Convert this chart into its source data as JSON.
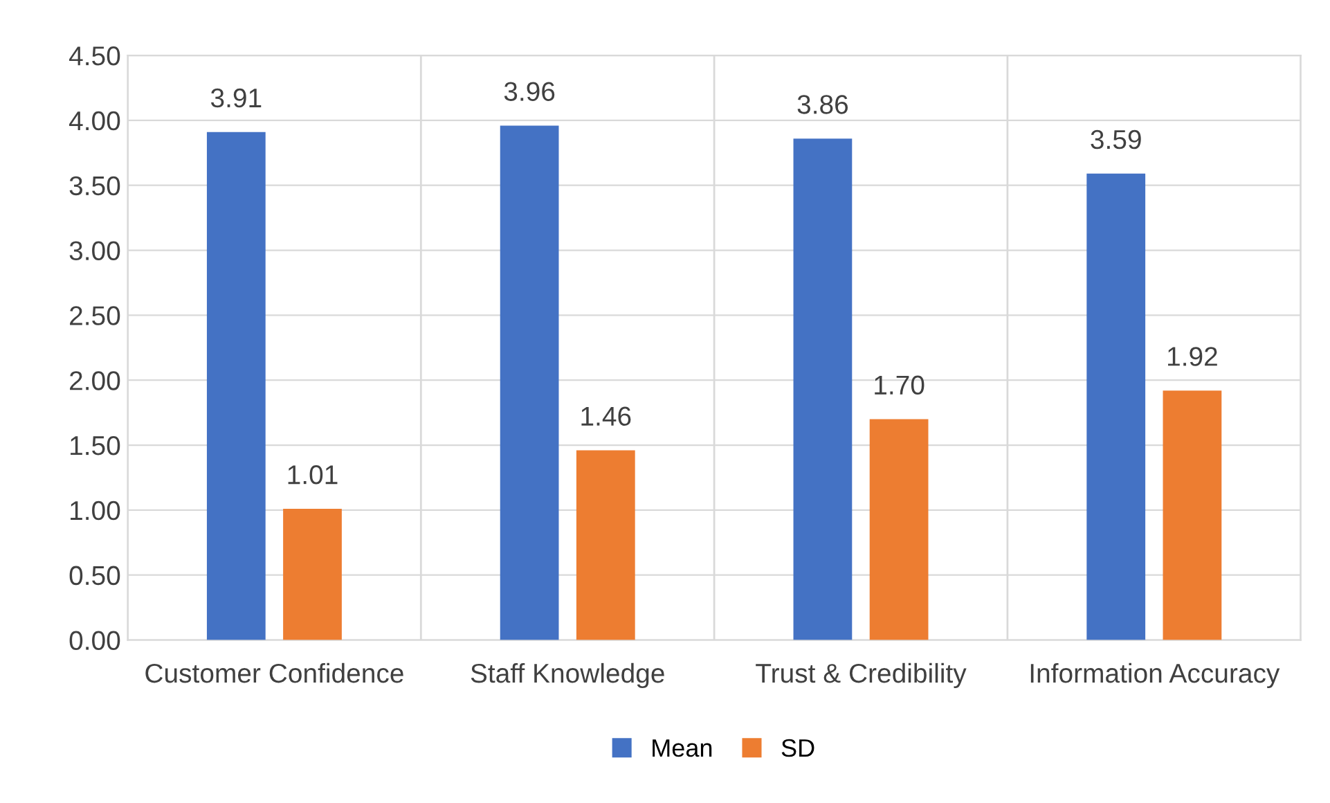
{
  "chart_data": {
    "type": "bar",
    "categories": [
      "Customer Confidence",
      "Staff Knowledge",
      "Trust & Credibility",
      "Information Accuracy"
    ],
    "series": [
      {
        "name": "Mean",
        "color": "#4472c4",
        "values": [
          3.91,
          3.96,
          3.86,
          3.59
        ],
        "value_labels": [
          "3.91",
          "3.96",
          "3.86",
          "3.59"
        ]
      },
      {
        "name": "SD",
        "color": "#ed7d31",
        "values": [
          1.01,
          1.46,
          1.7,
          1.92
        ],
        "value_labels": [
          "1.01",
          "1.46",
          "1.70",
          "1.92"
        ]
      }
    ],
    "ylim": [
      0,
      4.5
    ],
    "yticks": [
      {
        "value": 0,
        "label": "0.00"
      },
      {
        "value": 0.5,
        "label": "0.50"
      },
      {
        "value": 1,
        "label": "1.00"
      },
      {
        "value": 1.5,
        "label": "1.50"
      },
      {
        "value": 2,
        "label": "2.00"
      },
      {
        "value": 2.5,
        "label": "2.50"
      },
      {
        "value": 3,
        "label": "3.00"
      },
      {
        "value": 3.5,
        "label": "3.50"
      },
      {
        "value": 4,
        "label": "4.00"
      },
      {
        "value": 4.5,
        "label": "4.50"
      }
    ],
    "grid": true,
    "legend": "bottom"
  }
}
